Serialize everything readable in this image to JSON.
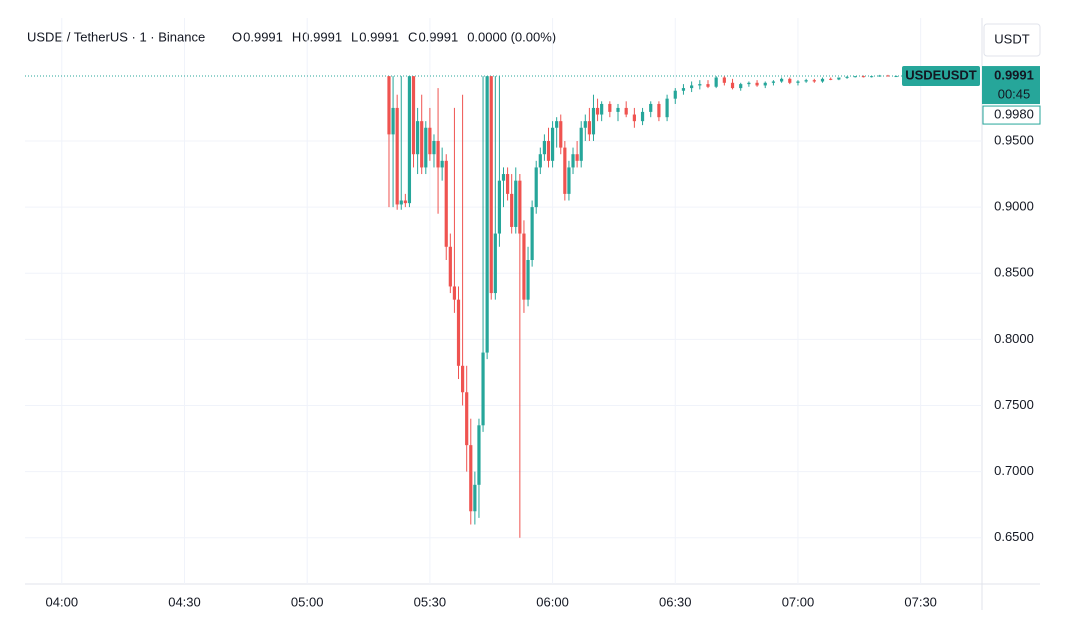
{
  "chart_data": {
    "type": "candlestick",
    "header": {
      "symbol": "USDE / TetherUS · 1 · Binance",
      "legend": [
        {
          "key": "O",
          "value": "0.9991"
        },
        {
          "key": "H",
          "value": "0.9991"
        },
        {
          "key": "L",
          "value": "0.9991"
        },
        {
          "key": "C",
          "value": "0.9991"
        }
      ],
      "change": "0.0000 (0.00%)"
    },
    "currency": "USDT",
    "ticker": "USDEUSDT",
    "last_price": 0.9991,
    "countdown": "00:45",
    "bid_price": {
      "value": 0.998,
      "label": "0.9980"
    },
    "up_color": "#26a69a",
    "down_color": "#ef5350",
    "xlim": [
      "03:51",
      "07:45"
    ],
    "xticks": [
      "04:00",
      "04:30",
      "05:00",
      "05:30",
      "06:00",
      "06:30",
      "07:00",
      "07:30"
    ],
    "ylim": [
      0.615,
      1.043
    ],
    "yticks": [
      {
        "value": 0.65,
        "label": "0.6500"
      },
      {
        "value": 0.7,
        "label": "0.7000"
      },
      {
        "value": 0.75,
        "label": "0.7500"
      },
      {
        "value": 0.8,
        "label": "0.8000"
      },
      {
        "value": 0.85,
        "label": "0.8500"
      },
      {
        "value": 0.9,
        "label": "0.9000"
      },
      {
        "value": 0.95,
        "label": "0.9500"
      }
    ],
    "grid": true,
    "x": [
      "05:20",
      "05:21",
      "05:22",
      "05:23",
      "05:24",
      "05:25",
      "05:26",
      "05:27",
      "05:28",
      "05:29",
      "05:30",
      "05:31",
      "05:32",
      "05:33",
      "05:34",
      "05:35",
      "05:36",
      "05:37",
      "05:38",
      "05:39",
      "05:40",
      "05:41",
      "05:42",
      "05:43",
      "05:44",
      "05:45",
      "05:46",
      "05:47",
      "05:48",
      "05:49",
      "05:50",
      "05:51",
      "05:52",
      "05:53",
      "05:54",
      "05:55",
      "05:56",
      "05:57",
      "05:58",
      "05:59",
      "06:00",
      "06:01",
      "06:02",
      "06:03",
      "06:04",
      "06:05",
      "06:06",
      "06:07",
      "06:08",
      "06:09",
      "06:10",
      "06:11",
      "06:12",
      "06:14",
      "06:16",
      "06:18",
      "06:20",
      "06:22",
      "06:24",
      "06:26",
      "06:28",
      "06:30",
      "06:32",
      "06:34",
      "06:36",
      "06:38",
      "06:40",
      "06:42",
      "06:44",
      "06:46",
      "06:48",
      "06:50",
      "06:52",
      "06:54",
      "06:56",
      "06:58",
      "07:00",
      "07:02",
      "07:04",
      "07:06",
      "07:08",
      "07:10",
      "07:12",
      "07:14",
      "07:16",
      "07:18",
      "07:20",
      "07:22",
      "07:24"
    ],
    "values": [
      [
        0.999,
        0.999,
        0.9,
        0.955
      ],
      [
        0.955,
        0.999,
        0.9,
        0.975
      ],
      [
        0.975,
        0.985,
        0.898,
        0.902
      ],
      [
        0.902,
        0.999,
        0.898,
        0.905
      ],
      [
        0.905,
        0.91,
        0.9,
        0.903
      ],
      [
        0.903,
        0.999,
        0.9,
        0.999
      ],
      [
        0.999,
        0.999,
        0.93,
        0.94
      ],
      [
        0.94,
        0.975,
        0.925,
        0.965
      ],
      [
        0.965,
        0.985,
        0.925,
        0.93
      ],
      [
        0.93,
        0.965,
        0.925,
        0.96
      ],
      [
        0.96,
        0.975,
        0.935,
        0.94
      ],
      [
        0.94,
        0.955,
        0.93,
        0.95
      ],
      [
        0.95,
        0.99,
        0.895,
        0.93
      ],
      [
        0.93,
        0.945,
        0.92,
        0.935
      ],
      [
        0.935,
        0.94,
        0.86,
        0.87
      ],
      [
        0.87,
        0.88,
        0.835,
        0.84
      ],
      [
        0.84,
        0.975,
        0.82,
        0.83
      ],
      [
        0.83,
        0.84,
        0.77,
        0.78
      ],
      [
        0.78,
        0.985,
        0.75,
        0.76
      ],
      [
        0.76,
        0.78,
        0.7,
        0.72
      ],
      [
        0.72,
        0.74,
        0.66,
        0.67
      ],
      [
        0.67,
        0.7,
        0.66,
        0.69
      ],
      [
        0.69,
        0.74,
        0.665,
        0.735
      ],
      [
        0.735,
        0.999,
        0.73,
        0.79
      ],
      [
        0.79,
        0.999,
        0.785,
        0.999
      ],
      [
        0.999,
        0.999,
        0.83,
        0.835
      ],
      [
        0.835,
        0.999,
        0.83,
        0.88
      ],
      [
        0.88,
        0.999,
        0.87,
        0.92
      ],
      [
        0.92,
        0.93,
        0.9,
        0.925
      ],
      [
        0.925,
        0.93,
        0.905,
        0.91
      ],
      [
        0.91,
        0.925,
        0.88,
        0.885
      ],
      [
        0.885,
        0.93,
        0.88,
        0.92
      ],
      [
        0.92,
        0.925,
        0.65,
        0.88
      ],
      [
        0.88,
        0.89,
        0.82,
        0.83
      ],
      [
        0.83,
        0.87,
        0.825,
        0.86
      ],
      [
        0.86,
        0.905,
        0.855,
        0.9
      ],
      [
        0.9,
        0.935,
        0.895,
        0.93
      ],
      [
        0.93,
        0.945,
        0.925,
        0.94
      ],
      [
        0.94,
        0.955,
        0.935,
        0.95
      ],
      [
        0.95,
        0.96,
        0.93,
        0.935
      ],
      [
        0.935,
        0.965,
        0.93,
        0.96
      ],
      [
        0.96,
        0.968,
        0.945,
        0.965
      ],
      [
        0.965,
        0.97,
        0.94,
        0.945
      ],
      [
        0.945,
        0.95,
        0.905,
        0.91
      ],
      [
        0.91,
        0.935,
        0.905,
        0.93
      ],
      [
        0.93,
        0.945,
        0.925,
        0.94
      ],
      [
        0.94,
        0.95,
        0.93,
        0.935
      ],
      [
        0.935,
        0.965,
        0.93,
        0.96
      ],
      [
        0.96,
        0.97,
        0.95,
        0.965
      ],
      [
        0.965,
        0.975,
        0.95,
        0.955
      ],
      [
        0.955,
        0.985,
        0.95,
        0.975
      ],
      [
        0.975,
        0.982,
        0.965,
        0.97
      ],
      [
        0.97,
        0.98,
        0.965,
        0.978
      ],
      [
        0.978,
        0.98,
        0.968,
        0.972
      ],
      [
        0.972,
        0.978,
        0.965,
        0.975
      ],
      [
        0.975,
        0.98,
        0.968,
        0.97
      ],
      [
        0.97,
        0.975,
        0.96,
        0.965
      ],
      [
        0.965,
        0.975,
        0.962,
        0.972
      ],
      [
        0.972,
        0.98,
        0.968,
        0.978
      ],
      [
        0.978,
        0.98,
        0.965,
        0.968
      ],
      [
        0.968,
        0.985,
        0.965,
        0.982
      ],
      [
        0.982,
        0.99,
        0.978,
        0.988
      ],
      [
        0.988,
        0.993,
        0.985,
        0.99
      ],
      [
        0.99,
        0.995,
        0.987,
        0.992
      ],
      [
        0.992,
        0.996,
        0.989,
        0.993
      ],
      [
        0.993,
        0.996,
        0.99,
        0.991
      ],
      [
        0.991,
        0.999,
        0.99,
        0.998
      ],
      [
        0.998,
        0.999,
        0.992,
        0.994
      ],
      [
        0.994,
        0.997,
        0.989,
        0.99
      ],
      [
        0.99,
        0.994,
        0.988,
        0.993
      ],
      [
        0.993,
        0.995,
        0.991,
        0.994
      ],
      [
        0.994,
        0.996,
        0.991,
        0.992
      ],
      [
        0.992,
        0.995,
        0.99,
        0.994
      ],
      [
        0.994,
        0.996,
        0.992,
        0.995
      ],
      [
        0.995,
        0.998,
        0.994,
        0.997
      ],
      [
        0.997,
        0.998,
        0.993,
        0.994
      ],
      [
        0.994,
        0.996,
        0.992,
        0.995
      ],
      [
        0.995,
        0.997,
        0.994,
        0.996
      ],
      [
        0.996,
        0.997,
        0.994,
        0.995
      ],
      [
        0.995,
        0.998,
        0.994,
        0.997
      ],
      [
        0.997,
        0.998,
        0.996,
        0.9965
      ],
      [
        0.9965,
        0.998,
        0.996,
        0.998
      ],
      [
        0.998,
        0.999,
        0.997,
        0.9985
      ],
      [
        0.9985,
        0.999,
        0.998,
        0.999
      ],
      [
        0.999,
        0.9995,
        0.998,
        0.9985
      ],
      [
        0.9985,
        0.9995,
        0.998,
        0.999
      ],
      [
        0.999,
        1.0,
        0.9985,
        0.9995
      ],
      [
        0.9995,
        1.0,
        0.999,
        0.9991
      ],
      [
        0.9991,
        0.9995,
        0.999,
        0.9991
      ]
    ]
  }
}
